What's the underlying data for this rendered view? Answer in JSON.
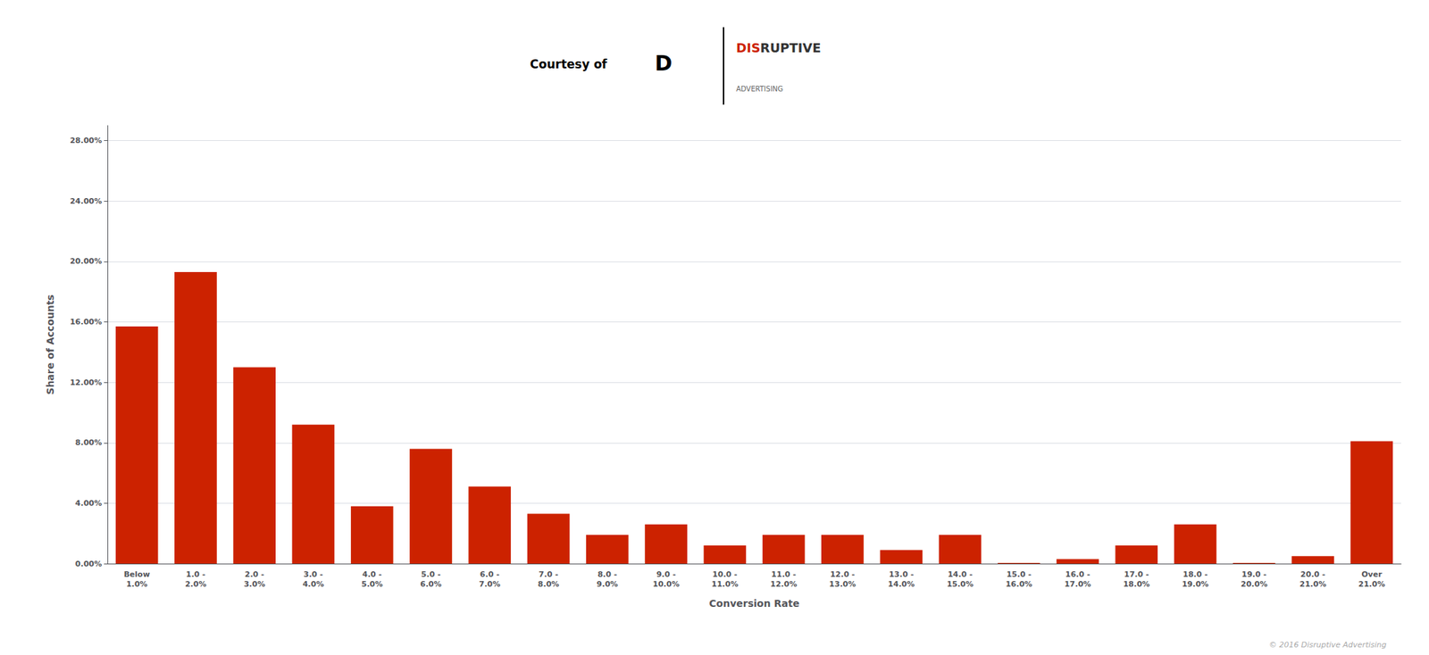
{
  "chart_data": {
    "type": "bar",
    "categories": [
      "Below\n1.0%",
      "1.0 -\n2.0%",
      "2.0 -\n3.0%",
      "3.0 -\n4.0%",
      "4.0 -\n5.0%",
      "5.0 -\n6.0%",
      "6.0 -\n7.0%",
      "7.0 -\n8.0%",
      "8.0 -\n9.0%",
      "9.0 -\n10.0%",
      "10.0 -\n11.0%",
      "11.0 -\n12.0%",
      "12.0 -\n13.0%",
      "13.0 -\n14.0%",
      "14.0 -\n15.0%",
      "15.0 -\n16.0%",
      "16.0 -\n17.0%",
      "17.0 -\n18.0%",
      "18.0 -\n19.0%",
      "19.0 -\n20.0%",
      "20.0 -\n21.0%",
      "Over\n21.0%"
    ],
    "values": [
      15.7,
      19.3,
      13.0,
      9.2,
      3.8,
      7.6,
      5.1,
      3.3,
      1.9,
      2.6,
      1.2,
      1.9,
      1.9,
      0.9,
      1.9,
      0.05,
      0.3,
      1.2,
      2.6,
      0.05,
      0.5,
      8.1
    ],
    "color": "#CC2200",
    "xlabel": "Conversion Rate",
    "ylabel": "Share of Accounts",
    "ylim": [
      0,
      29
    ],
    "yticks": [
      {
        "value": 0,
        "label": "0.00%"
      },
      {
        "value": 4,
        "label": "4.00%"
      },
      {
        "value": 8,
        "label": "8.00%"
      },
      {
        "value": 12,
        "label": "12.00%"
      },
      {
        "value": 16,
        "label": "16.00%"
      },
      {
        "value": 20,
        "label": "20.00%"
      },
      {
        "value": 24,
        "label": "24.00%"
      },
      {
        "value": 28,
        "label": "28.00%"
      }
    ],
    "grid": true,
    "annotations": [
      {
        "text": "Courtesy of",
        "color": "#000000"
      },
      {
        "text": "D",
        "color": "#000000"
      },
      {
        "text": "DIS",
        "color": "#CC2200"
      },
      {
        "text": "RUPTIVE",
        "color": "#333333"
      },
      {
        "text": "ADVERTISING",
        "color": "#666666"
      },
      {
        "text": "© 2016 Disruptive Advertising",
        "color": "#aaaaaa"
      }
    ]
  }
}
